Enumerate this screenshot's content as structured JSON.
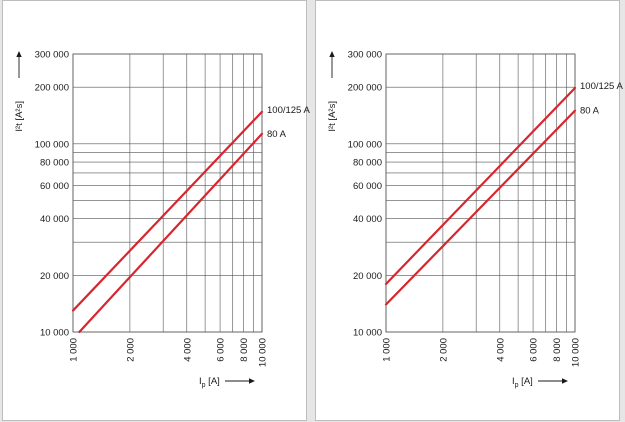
{
  "chart_data": [
    {
      "type": "line",
      "x_scale": "log",
      "y_scale": "log",
      "xlim": [
        1000,
        10000
      ],
      "ylim": [
        10000,
        300000
      ],
      "ylabel": "I²t [A²s]",
      "xlabel": "Ip [A]",
      "xlabel_main": "I",
      "xlabel_sub": "p",
      "xlabel_unit": " [A]",
      "y_ticks": [
        {
          "value": 10000,
          "label": "10 000"
        },
        {
          "value": 20000,
          "label": "20 000"
        },
        {
          "value": 40000,
          "label": "40 000"
        },
        {
          "value": 60000,
          "label": "60 000"
        },
        {
          "value": 80000,
          "label": "80 000"
        },
        {
          "value": 100000,
          "label": "100 000"
        },
        {
          "value": 200000,
          "label": "200 000"
        },
        {
          "value": 300000,
          "label": "300 000"
        }
      ],
      "x_ticks": [
        {
          "value": 1000,
          "label": "1 000"
        },
        {
          "value": 2000,
          "label": "2 000"
        },
        {
          "value": 4000,
          "label": "4 000"
        },
        {
          "value": 6000,
          "label": "6 000"
        },
        {
          "value": 8000,
          "label": "8 000"
        },
        {
          "value": 10000,
          "label": "10 000"
        }
      ],
      "grid": true,
      "color": "#d7262e",
      "series": [
        {
          "name": "100/125 A",
          "x": [
            1000,
            10000
          ],
          "y": [
            13000,
            148000
          ]
        },
        {
          "name": "80 A",
          "x": [
            1080,
            10000
          ],
          "y": [
            10000,
            113000
          ]
        }
      ]
    },
    {
      "type": "line",
      "x_scale": "log",
      "y_scale": "log",
      "xlim": [
        1000,
        10000
      ],
      "ylim": [
        10000,
        300000
      ],
      "ylabel": "I²t [A²s]",
      "xlabel": "Ip [A]",
      "xlabel_main": "I",
      "xlabel_sub": "p",
      "xlabel_unit": " [A]",
      "y_ticks": [
        {
          "value": 10000,
          "label": "10 000"
        },
        {
          "value": 20000,
          "label": "20 000"
        },
        {
          "value": 40000,
          "label": "40 000"
        },
        {
          "value": 60000,
          "label": "60 000"
        },
        {
          "value": 80000,
          "label": "80 000"
        },
        {
          "value": 100000,
          "label": "100 000"
        },
        {
          "value": 200000,
          "label": "200 000"
        },
        {
          "value": 300000,
          "label": "300 000"
        }
      ],
      "x_ticks": [
        {
          "value": 1000,
          "label": "1 000"
        },
        {
          "value": 2000,
          "label": "2 000"
        },
        {
          "value": 4000,
          "label": "4 000"
        },
        {
          "value": 6000,
          "label": "6 000"
        },
        {
          "value": 8000,
          "label": "8 000"
        },
        {
          "value": 10000,
          "label": "10 000"
        }
      ],
      "grid": true,
      "color": "#d7262e",
      "series": [
        {
          "name": "100/125 A",
          "x": [
            1000,
            10000
          ],
          "y": [
            18000,
            198000
          ]
        },
        {
          "name": "80 A",
          "x": [
            1000,
            10000
          ],
          "y": [
            14000,
            150000
          ]
        }
      ]
    }
  ]
}
